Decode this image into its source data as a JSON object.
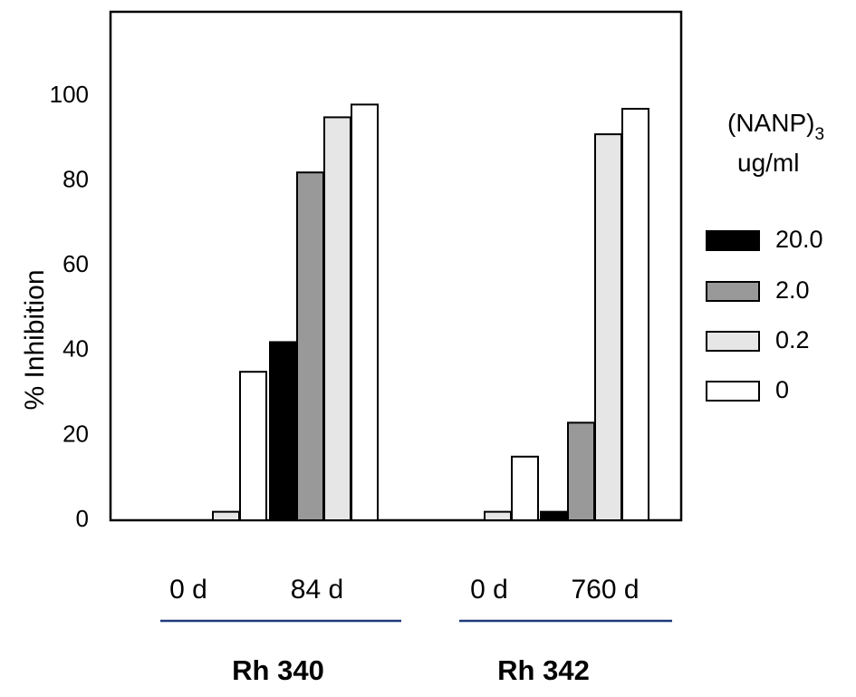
{
  "chart_data": {
    "type": "bar",
    "title": "",
    "ylabel": "% Inhibition",
    "xlabel": "",
    "ylim": [
      0,
      120
    ],
    "yticks": [
      0,
      20,
      40,
      60,
      80,
      100
    ],
    "grid": false,
    "legend_position": "right",
    "legend_title_line1": "(NANP)",
    "legend_title_sub": "3",
    "legend_title_line2": "ug/ml",
    "series": [
      {
        "name": "20.0",
        "color": "#000000",
        "values": [
          0,
          42,
          0,
          2
        ]
      },
      {
        "name": "2.0",
        "color": "#999999",
        "values": [
          0,
          82,
          0,
          23
        ]
      },
      {
        "name": "0.2",
        "color": "#e6e6e6",
        "values": [
          2,
          95,
          2,
          91
        ]
      },
      {
        "name": "0",
        "color": "#ffffff",
        "values": [
          35,
          98,
          15,
          97
        ]
      }
    ],
    "categories": [
      "0 d",
      "84 d",
      "0 d",
      "760 d"
    ],
    "groups": [
      {
        "label": "Rh 340",
        "categories": [
          0,
          1
        ]
      },
      {
        "label": "Rh 342",
        "categories": [
          2,
          3
        ]
      }
    ],
    "group_line_color": "#1f3a7a"
  }
}
